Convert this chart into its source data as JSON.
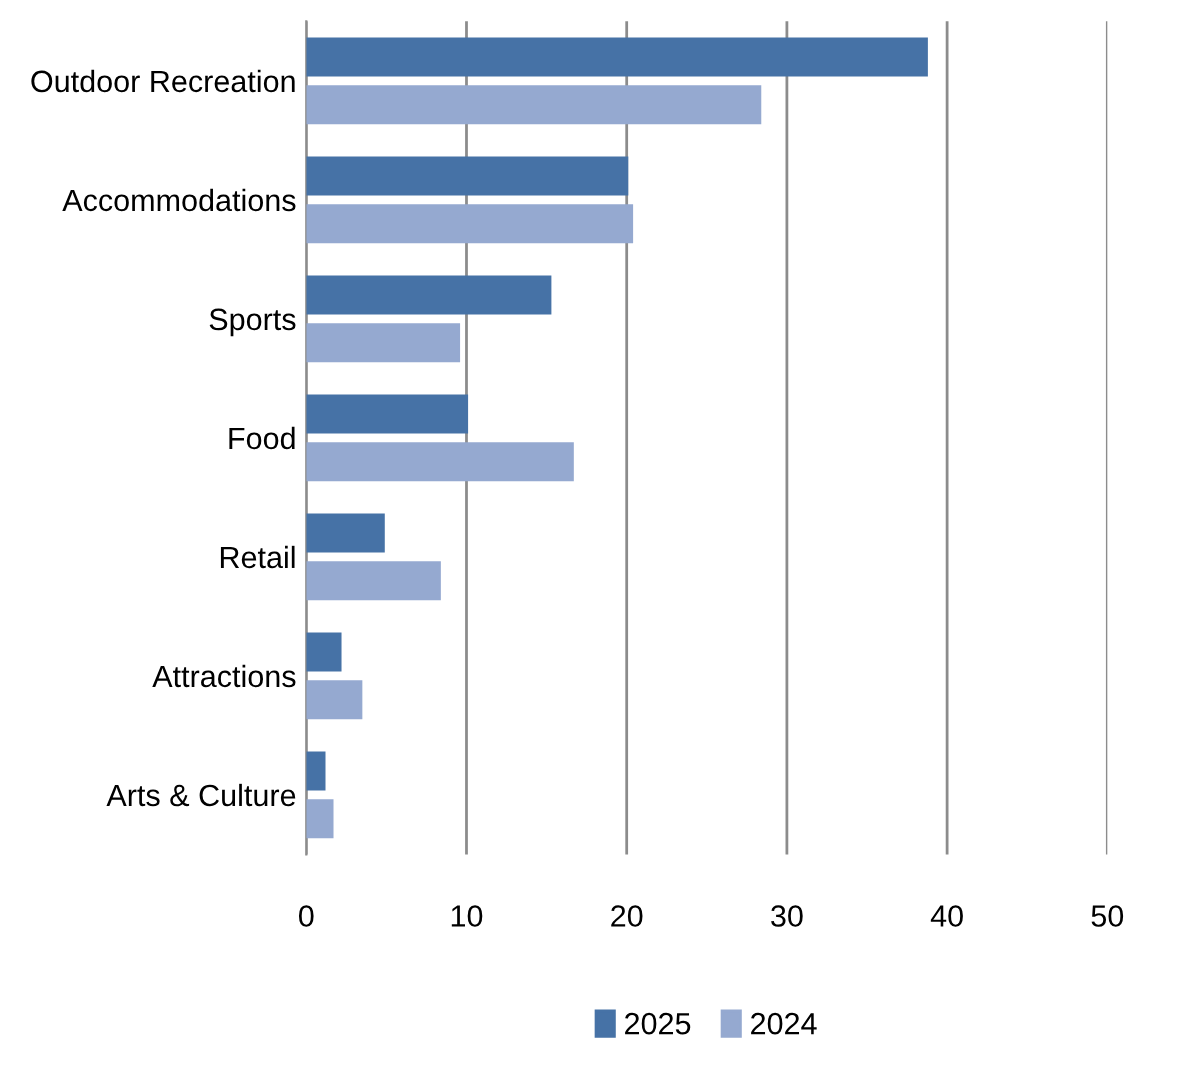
{
  "chart_data": {
    "type": "bar",
    "orientation": "horizontal",
    "categories": [
      "Outdoor Recreation",
      "Accommodations",
      "Sports",
      "Food",
      "Retail",
      "Attractions",
      "Arts & Culture"
    ],
    "series": [
      {
        "name": "2025",
        "color": "#4672a6",
        "values": [
          38.8,
          20.1,
          15.3,
          10.1,
          4.9,
          2.2,
          1.2
        ]
      },
      {
        "name": "2024",
        "color": "#95a9d0",
        "values": [
          28.4,
          20.4,
          9.6,
          16.7,
          8.4,
          3.5,
          1.7
        ]
      }
    ],
    "xlim": [
      0,
      50
    ],
    "xticks": [
      0,
      10,
      20,
      30,
      40,
      50
    ],
    "grid": "x",
    "legend": "bottom"
  }
}
